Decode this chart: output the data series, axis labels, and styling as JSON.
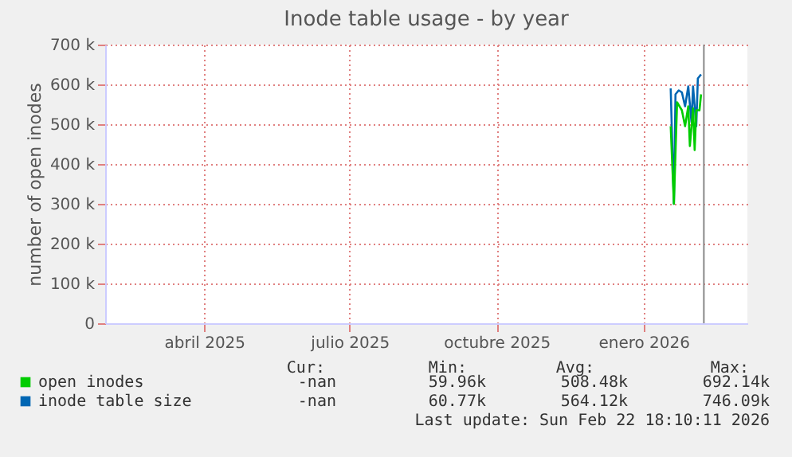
{
  "chart_data": {
    "type": "line",
    "title": "Inode table usage - by year",
    "ylabel": "number of open inodes",
    "xlim": [
      "2025-02-13",
      "2026-03-22"
    ],
    "xticks": [
      {
        "value": "2025-04-16",
        "label": "abril 2025"
      },
      {
        "value": "2025-07-16",
        "label": "julio 2025"
      },
      {
        "value": "2025-10-16",
        "label": "octubre 2025"
      },
      {
        "value": "2026-01-16",
        "label": "enero 2026"
      }
    ],
    "ylim": [
      0,
      700000
    ],
    "yticks": [
      {
        "value": 0,
        "label": "0"
      },
      {
        "value": 100000,
        "label": "100 k"
      },
      {
        "value": 200000,
        "label": "200 k"
      },
      {
        "value": 300000,
        "label": "300 k"
      },
      {
        "value": 400000,
        "label": "400 k"
      },
      {
        "value": 500000,
        "label": "500 k"
      },
      {
        "value": 600000,
        "label": "600 k"
      },
      {
        "value": 700000,
        "label": "700 k"
      }
    ],
    "grid": true,
    "legend": "bottom",
    "marker": "none",
    "line_style": "solid",
    "series": [
      {
        "name": "open inodes",
        "color": "#00cc00",
        "x": [
          "2026-02-02",
          "2026-02-04",
          "2026-02-06",
          "2026-02-09",
          "2026-02-11",
          "2026-02-13",
          "2026-02-14",
          "2026-02-16",
          "2026-02-17",
          "2026-02-18",
          "2026-02-20",
          "2026-02-21"
        ],
        "values": [
          495000,
          300000,
          555000,
          535000,
          495000,
          545000,
          445000,
          540000,
          435000,
          535000,
          535000,
          575000
        ]
      },
      {
        "name": "inode table size",
        "color": "#0066b3",
        "x": [
          "2026-02-02",
          "2026-02-04",
          "2026-02-05",
          "2026-02-07",
          "2026-02-09",
          "2026-02-11",
          "2026-02-13",
          "2026-02-15",
          "2026-02-16",
          "2026-02-18",
          "2026-02-19",
          "2026-02-21"
        ],
        "values": [
          590000,
          300000,
          575000,
          585000,
          580000,
          545000,
          595000,
          505000,
          595000,
          495000,
          615000,
          625000
        ]
      }
    ],
    "ref_lines": [
      {
        "axis": "x",
        "value": "2026-02-22T18:10",
        "color": "#888888"
      }
    ],
    "annotations": [
      "Cur:",
      "Min:",
      "Avg:",
      "Max:",
      "-nan",
      "59.96k",
      "508.48k",
      "692.14k",
      "-nan",
      "60.77k",
      "564.12k",
      "746.09k",
      "Last update: Sun Feb 22 18:10:11 2026"
    ]
  }
}
